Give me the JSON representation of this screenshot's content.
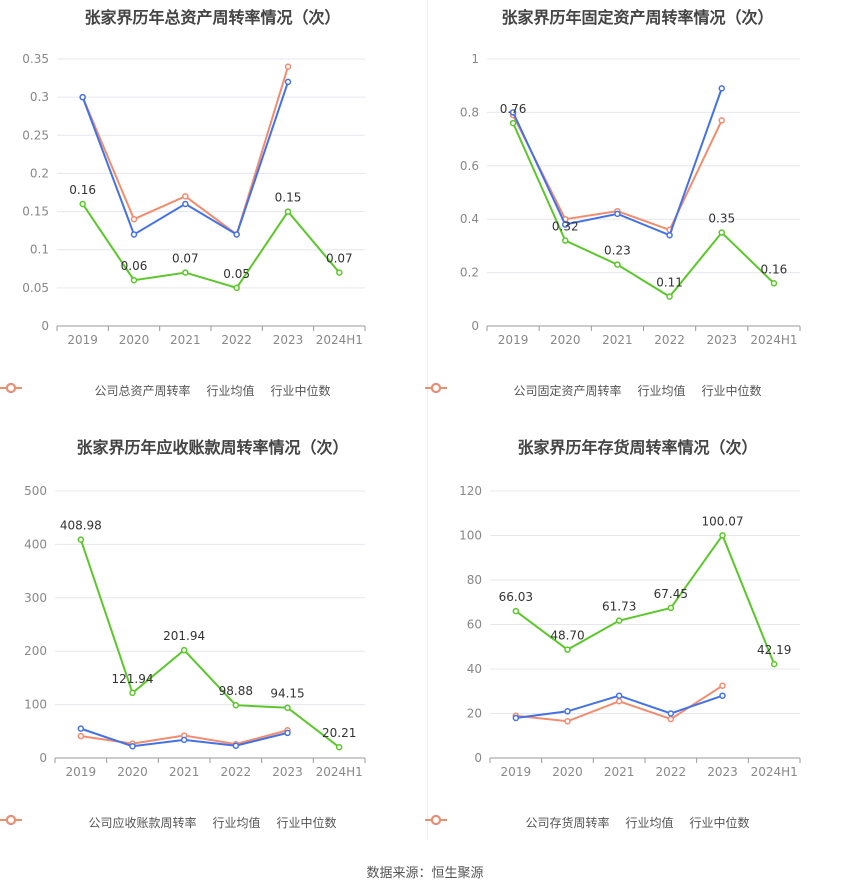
{
  "colors": {
    "company": "#5cc72a",
    "avg": "#4472e6",
    "median": "#f28c6e",
    "grid": "#e6e6ef",
    "axis": "#999999"
  },
  "source_text": "数据来源：恒生聚源",
  "chart_data": [
    {
      "type": "line",
      "title": "张家界历年总资产周转率情况（次）",
      "categories": [
        "2019",
        "2020",
        "2021",
        "2022",
        "2023",
        "2024H1"
      ],
      "ylim": [
        0,
        0.35
      ],
      "yticks": [
        "0",
        "0.05",
        "0.1",
        "0.15",
        "0.2",
        "0.25",
        "0.3",
        "0.35"
      ],
      "series": [
        {
          "name": "公司总资产周转率",
          "key": "company",
          "values": [
            0.16,
            0.06,
            0.07,
            0.05,
            0.15,
            0.07
          ],
          "labels": [
            "0.16",
            "0.06",
            "0.07",
            "0.05",
            "0.15",
            "0.07"
          ]
        },
        {
          "name": "行业均值",
          "key": "avg",
          "values": [
            0.3,
            0.12,
            0.16,
            0.12,
            0.32,
            null
          ]
        },
        {
          "name": "行业中位数",
          "key": "median",
          "values": [
            0.3,
            0.14,
            0.17,
            0.12,
            0.34,
            null
          ]
        }
      ],
      "legend": "bottom"
    },
    {
      "type": "line",
      "title": "张家界历年固定资产周转率情况（次）",
      "categories": [
        "2019",
        "2020",
        "2021",
        "2022",
        "2023",
        "2024H1"
      ],
      "ylim": [
        0,
        1
      ],
      "yticks": [
        "0",
        "0.2",
        "0.4",
        "0.6",
        "0.8",
        "1"
      ],
      "series": [
        {
          "name": "公司固定资产周转率",
          "key": "company",
          "values": [
            0.76,
            0.32,
            0.23,
            0.11,
            0.35,
            0.16
          ],
          "labels": [
            "0.76",
            "0.32",
            "0.23",
            "0.11",
            "0.35",
            "0.16"
          ]
        },
        {
          "name": "行业均值",
          "key": "avg",
          "values": [
            0.8,
            0.38,
            0.42,
            0.34,
            0.89,
            null
          ]
        },
        {
          "name": "行业中位数",
          "key": "median",
          "values": [
            0.79,
            0.4,
            0.43,
            0.36,
            0.77,
            null
          ]
        }
      ],
      "legend": "bottom"
    },
    {
      "type": "line",
      "title": "张家界历年应收账款周转率情况（次）",
      "categories": [
        "2019",
        "2020",
        "2021",
        "2022",
        "2023",
        "2024H1"
      ],
      "ylim": [
        0,
        500
      ],
      "yticks": [
        "0",
        "100",
        "200",
        "300",
        "400",
        "500"
      ],
      "series": [
        {
          "name": "公司应收账款周转率",
          "key": "company",
          "values": [
            408.98,
            121.94,
            201.94,
            98.88,
            94.15,
            20.21
          ],
          "labels": [
            "408.98",
            "121.94",
            "201.94",
            "98.88",
            "94.15",
            "20.21"
          ]
        },
        {
          "name": "行业均值",
          "key": "avg",
          "values": [
            55,
            22,
            34,
            23,
            47,
            null
          ]
        },
        {
          "name": "行业中位数",
          "key": "median",
          "values": [
            41,
            27,
            42,
            26,
            52,
            null
          ]
        }
      ],
      "legend": "bottom"
    },
    {
      "type": "line",
      "title": "张家界历年存货周转率情况（次）",
      "categories": [
        "2019",
        "2020",
        "2021",
        "2022",
        "2023",
        "2024H1"
      ],
      "ylim": [
        0,
        120
      ],
      "yticks": [
        "0",
        "20",
        "40",
        "60",
        "80",
        "100",
        "120"
      ],
      "series": [
        {
          "name": "公司存货周转率",
          "key": "company",
          "values": [
            66.03,
            48.7,
            61.73,
            67.45,
            100.07,
            42.19
          ],
          "labels": [
            "66.03",
            "48.70",
            "61.73",
            "67.45",
            "100.07",
            "42.19"
          ]
        },
        {
          "name": "行业均值",
          "key": "avg",
          "values": [
            18,
            21,
            28,
            20,
            28,
            null
          ]
        },
        {
          "name": "行业中位数",
          "key": "median",
          "values": [
            19,
            16.5,
            25.5,
            17.5,
            32.5,
            null
          ]
        }
      ],
      "legend": "bottom"
    }
  ]
}
